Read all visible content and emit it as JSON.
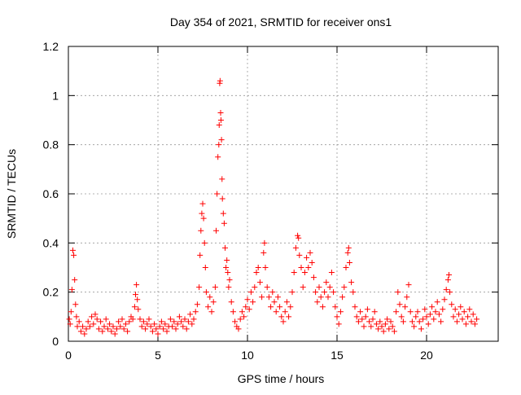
{
  "chart_data": {
    "type": "scatter",
    "title": "Day 354 of 2021, SRMTID for receiver ons1",
    "xlabel": "GPS time / hours",
    "ylabel": "SRMTID / TECUs",
    "xlim": [
      0,
      24
    ],
    "ylim": [
      0,
      1.2
    ],
    "x_ticks": [
      0,
      5,
      10,
      15,
      20
    ],
    "x_tick_labels": [
      "0",
      "5",
      "10",
      "15",
      "20"
    ],
    "y_ticks": [
      0,
      0.2,
      0.4,
      0.6,
      0.8,
      1.0,
      1.2
    ],
    "y_tick_labels": [
      "0",
      "0.2",
      "0.4",
      "0.6",
      "0.8",
      "1",
      "1.2"
    ],
    "grid": true,
    "marker": "plus",
    "color": "#ff0000",
    "series": [
      {
        "name": "SRMTID",
        "points": [
          [
            0.05,
            0.09
          ],
          [
            0.1,
            0.07
          ],
          [
            0.15,
            0.12
          ],
          [
            0.2,
            0.21
          ],
          [
            0.25,
            0.37
          ],
          [
            0.3,
            0.35
          ],
          [
            0.35,
            0.25
          ],
          [
            0.4,
            0.15
          ],
          [
            0.45,
            0.1
          ],
          [
            0.5,
            0.06
          ],
          [
            0.6,
            0.08
          ],
          [
            0.7,
            0.04
          ],
          [
            0.8,
            0.06
          ],
          [
            0.9,
            0.03
          ],
          [
            1.0,
            0.05
          ],
          [
            1.1,
            0.08
          ],
          [
            1.2,
            0.06
          ],
          [
            1.3,
            0.1
          ],
          [
            1.4,
            0.07
          ],
          [
            1.5,
            0.11
          ],
          [
            1.6,
            0.09
          ],
          [
            1.7,
            0.05
          ],
          [
            1.8,
            0.08
          ],
          [
            1.9,
            0.04
          ],
          [
            2.0,
            0.06
          ],
          [
            2.1,
            0.09
          ],
          [
            2.2,
            0.05
          ],
          [
            2.3,
            0.07
          ],
          [
            2.4,
            0.04
          ],
          [
            2.5,
            0.06
          ],
          [
            2.6,
            0.03
          ],
          [
            2.7,
            0.05
          ],
          [
            2.8,
            0.08
          ],
          [
            2.9,
            0.06
          ],
          [
            3.0,
            0.09
          ],
          [
            3.1,
            0.05
          ],
          [
            3.2,
            0.07
          ],
          [
            3.3,
            0.04
          ],
          [
            3.4,
            0.08
          ],
          [
            3.5,
            0.1
          ],
          [
            3.6,
            0.09
          ],
          [
            3.7,
            0.14
          ],
          [
            3.75,
            0.19
          ],
          [
            3.8,
            0.23
          ],
          [
            3.85,
            0.17
          ],
          [
            3.9,
            0.13
          ],
          [
            4.0,
            0.09
          ],
          [
            4.1,
            0.06
          ],
          [
            4.2,
            0.08
          ],
          [
            4.3,
            0.05
          ],
          [
            4.4,
            0.07
          ],
          [
            4.5,
            0.09
          ],
          [
            4.6,
            0.06
          ],
          [
            4.7,
            0.04
          ],
          [
            4.8,
            0.07
          ],
          [
            4.9,
            0.05
          ],
          [
            5.0,
            0.03
          ],
          [
            5.1,
            0.06
          ],
          [
            5.2,
            0.08
          ],
          [
            5.3,
            0.05
          ],
          [
            5.4,
            0.07
          ],
          [
            5.5,
            0.04
          ],
          [
            5.6,
            0.06
          ],
          [
            5.7,
            0.09
          ],
          [
            5.8,
            0.06
          ],
          [
            5.9,
            0.08
          ],
          [
            6.0,
            0.05
          ],
          [
            6.1,
            0.07
          ],
          [
            6.2,
            0.1
          ],
          [
            6.3,
            0.08
          ],
          [
            6.4,
            0.06
          ],
          [
            6.5,
            0.09
          ],
          [
            6.6,
            0.05
          ],
          [
            6.7,
            0.08
          ],
          [
            6.8,
            0.11
          ],
          [
            6.9,
            0.07
          ],
          [
            7.0,
            0.09
          ],
          [
            7.1,
            0.12
          ],
          [
            7.2,
            0.15
          ],
          [
            7.3,
            0.22
          ],
          [
            7.35,
            0.35
          ],
          [
            7.4,
            0.45
          ],
          [
            7.45,
            0.52
          ],
          [
            7.5,
            0.56
          ],
          [
            7.55,
            0.5
          ],
          [
            7.6,
            0.4
          ],
          [
            7.65,
            0.3
          ],
          [
            7.7,
            0.2
          ],
          [
            7.8,
            0.14
          ],
          [
            7.9,
            0.18
          ],
          [
            8.0,
            0.12
          ],
          [
            8.1,
            0.16
          ],
          [
            8.2,
            0.22
          ],
          [
            8.25,
            0.45
          ],
          [
            8.3,
            0.6
          ],
          [
            8.35,
            0.75
          ],
          [
            8.4,
            0.8
          ],
          [
            8.42,
            0.88
          ],
          [
            8.45,
            1.05
          ],
          [
            8.47,
            1.06
          ],
          [
            8.5,
            0.93
          ],
          [
            8.52,
            0.9
          ],
          [
            8.55,
            0.82
          ],
          [
            8.58,
            0.66
          ],
          [
            8.6,
            0.58
          ],
          [
            8.65,
            0.52
          ],
          [
            8.7,
            0.48
          ],
          [
            8.75,
            0.38
          ],
          [
            8.8,
            0.3
          ],
          [
            8.85,
            0.33
          ],
          [
            8.9,
            0.28
          ],
          [
            8.95,
            0.22
          ],
          [
            9.0,
            0.25
          ],
          [
            9.1,
            0.16
          ],
          [
            9.2,
            0.12
          ],
          [
            9.3,
            0.08
          ],
          [
            9.4,
            0.06
          ],
          [
            9.5,
            0.05
          ],
          [
            9.6,
            0.09
          ],
          [
            9.7,
            0.12
          ],
          [
            9.8,
            0.1
          ],
          [
            9.9,
            0.14
          ],
          [
            10.0,
            0.17
          ],
          [
            10.1,
            0.13
          ],
          [
            10.2,
            0.2
          ],
          [
            10.3,
            0.16
          ],
          [
            10.4,
            0.22
          ],
          [
            10.5,
            0.28
          ],
          [
            10.6,
            0.3
          ],
          [
            10.7,
            0.24
          ],
          [
            10.8,
            0.18
          ],
          [
            10.9,
            0.36
          ],
          [
            10.95,
            0.4
          ],
          [
            11.0,
            0.3
          ],
          [
            11.1,
            0.22
          ],
          [
            11.2,
            0.18
          ],
          [
            11.3,
            0.14
          ],
          [
            11.4,
            0.2
          ],
          [
            11.5,
            0.16
          ],
          [
            11.6,
            0.12
          ],
          [
            11.7,
            0.18
          ],
          [
            11.8,
            0.14
          ],
          [
            11.9,
            0.1
          ],
          [
            12.0,
            0.08
          ],
          [
            12.1,
            0.12
          ],
          [
            12.2,
            0.16
          ],
          [
            12.3,
            0.1
          ],
          [
            12.4,
            0.14
          ],
          [
            12.5,
            0.2
          ],
          [
            12.6,
            0.28
          ],
          [
            12.7,
            0.38
          ],
          [
            12.8,
            0.43
          ],
          [
            12.85,
            0.42
          ],
          [
            12.9,
            0.35
          ],
          [
            13.0,
            0.3
          ],
          [
            13.1,
            0.22
          ],
          [
            13.2,
            0.28
          ],
          [
            13.3,
            0.34
          ],
          [
            13.4,
            0.3
          ],
          [
            13.5,
            0.36
          ],
          [
            13.6,
            0.32
          ],
          [
            13.7,
            0.26
          ],
          [
            13.8,
            0.2
          ],
          [
            13.9,
            0.16
          ],
          [
            14.0,
            0.22
          ],
          [
            14.1,
            0.18
          ],
          [
            14.2,
            0.14
          ],
          [
            14.3,
            0.2
          ],
          [
            14.4,
            0.24
          ],
          [
            14.5,
            0.18
          ],
          [
            14.6,
            0.22
          ],
          [
            14.7,
            0.28
          ],
          [
            14.8,
            0.2
          ],
          [
            14.9,
            0.14
          ],
          [
            15.0,
            0.1
          ],
          [
            15.1,
            0.07
          ],
          [
            15.2,
            0.12
          ],
          [
            15.3,
            0.18
          ],
          [
            15.4,
            0.22
          ],
          [
            15.5,
            0.3
          ],
          [
            15.6,
            0.36
          ],
          [
            15.65,
            0.38
          ],
          [
            15.7,
            0.32
          ],
          [
            15.8,
            0.24
          ],
          [
            15.9,
            0.2
          ],
          [
            16.0,
            0.14
          ],
          [
            16.1,
            0.1
          ],
          [
            16.2,
            0.08
          ],
          [
            16.3,
            0.12
          ],
          [
            16.4,
            0.09
          ],
          [
            16.5,
            0.06
          ],
          [
            16.6,
            0.1
          ],
          [
            16.7,
            0.13
          ],
          [
            16.8,
            0.08
          ],
          [
            16.9,
            0.06
          ],
          [
            17.0,
            0.09
          ],
          [
            17.1,
            0.12
          ],
          [
            17.2,
            0.07
          ],
          [
            17.3,
            0.05
          ],
          [
            17.4,
            0.08
          ],
          [
            17.5,
            0.06
          ],
          [
            17.6,
            0.04
          ],
          [
            17.7,
            0.07
          ],
          [
            17.8,
            0.09
          ],
          [
            17.9,
            0.05
          ],
          [
            18.0,
            0.08
          ],
          [
            18.1,
            0.06
          ],
          [
            18.2,
            0.04
          ],
          [
            18.3,
            0.12
          ],
          [
            18.4,
            0.2
          ],
          [
            18.5,
            0.15
          ],
          [
            18.6,
            0.1
          ],
          [
            18.7,
            0.08
          ],
          [
            18.8,
            0.14
          ],
          [
            18.9,
            0.18
          ],
          [
            19.0,
            0.23
          ],
          [
            19.1,
            0.12
          ],
          [
            19.2,
            0.08
          ],
          [
            19.3,
            0.06
          ],
          [
            19.4,
            0.1
          ],
          [
            19.5,
            0.12
          ],
          [
            19.6,
            0.08
          ],
          [
            19.7,
            0.05
          ],
          [
            19.8,
            0.09
          ],
          [
            19.9,
            0.13
          ],
          [
            20.0,
            0.1
          ],
          [
            20.1,
            0.07
          ],
          [
            20.2,
            0.11
          ],
          [
            20.3,
            0.14
          ],
          [
            20.4,
            0.09
          ],
          [
            20.5,
            0.12
          ],
          [
            20.6,
            0.16
          ],
          [
            20.7,
            0.11
          ],
          [
            20.8,
            0.08
          ],
          [
            20.9,
            0.13
          ],
          [
            21.0,
            0.17
          ],
          [
            21.1,
            0.21
          ],
          [
            21.2,
            0.25
          ],
          [
            21.25,
            0.27
          ],
          [
            21.3,
            0.2
          ],
          [
            21.4,
            0.15
          ],
          [
            21.5,
            0.1
          ],
          [
            21.6,
            0.13
          ],
          [
            21.7,
            0.08
          ],
          [
            21.8,
            0.11
          ],
          [
            21.9,
            0.14
          ],
          [
            22.0,
            0.09
          ],
          [
            22.1,
            0.12
          ],
          [
            22.2,
            0.07
          ],
          [
            22.3,
            0.1
          ],
          [
            22.4,
            0.13
          ],
          [
            22.5,
            0.08
          ],
          [
            22.6,
            0.11
          ],
          [
            22.7,
            0.07
          ],
          [
            22.8,
            0.09
          ]
        ]
      }
    ]
  }
}
